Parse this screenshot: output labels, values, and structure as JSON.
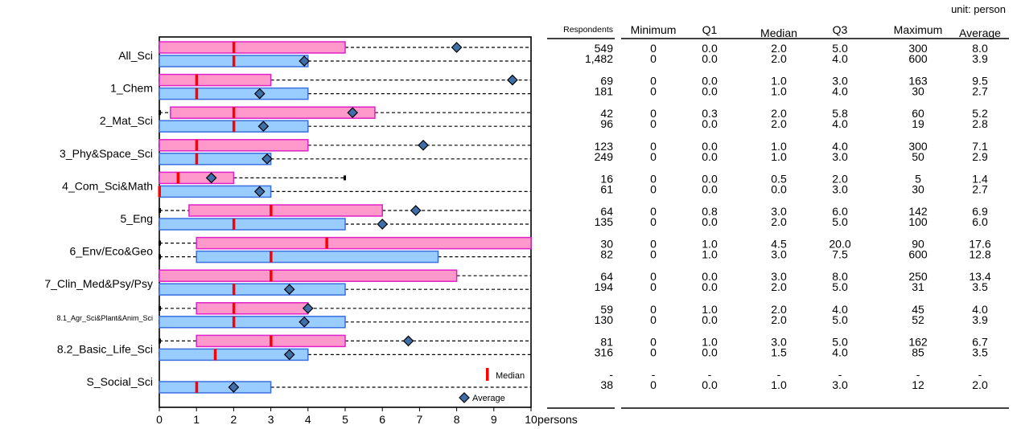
{
  "chart_data": {
    "type": "boxplot",
    "xlabel": "persons",
    "xlim": [
      0,
      10
    ],
    "x_ticks": [
      "0",
      "1",
      "2",
      "3",
      "4",
      "5",
      "6",
      "7",
      "8",
      "9",
      "10"
    ],
    "unit_note": "unit: person",
    "columns": [
      "Respondents",
      "Minimum",
      "Q1",
      "Median",
      "Q3",
      "Maximum",
      "Average"
    ],
    "series_colors": {
      "pink": "#ff99cc",
      "pink_border": "#e020c8",
      "blue": "#99ccff",
      "blue_border": "#3a70e0",
      "median": "#ff0000",
      "avg": "#3f6fa8"
    },
    "legend": {
      "median": "Median",
      "average": "Average"
    },
    "categories": [
      {
        "label": "All_Sci",
        "pink": {
          "resp": "549",
          "min": "0",
          "q1": "0.0",
          "median": "2.0",
          "q3": "5.0",
          "max": "300",
          "avg": "8.0"
        },
        "blue": {
          "resp": "1,482",
          "min": "0",
          "q1": "0.0",
          "median": "2.0",
          "q3": "4.0",
          "max": "600",
          "avg": "3.9"
        }
      },
      {
        "label": "1_Chem",
        "pink": {
          "resp": "69",
          "min": "0",
          "q1": "0.0",
          "median": "1.0",
          "q3": "3.0",
          "max": "163",
          "avg": "9.5"
        },
        "blue": {
          "resp": "181",
          "min": "0",
          "q1": "0.0",
          "median": "1.0",
          "q3": "4.0",
          "max": "30",
          "avg": "2.7"
        }
      },
      {
        "label": "2_Mat_Sci",
        "pink": {
          "resp": "42",
          "min": "0",
          "q1": "0.3",
          "median": "2.0",
          "q3": "5.8",
          "max": "60",
          "avg": "5.2"
        },
        "blue": {
          "resp": "96",
          "min": "0",
          "q1": "0.0",
          "median": "2.0",
          "q3": "4.0",
          "max": "19",
          "avg": "2.8"
        }
      },
      {
        "label": "3_Phy&Space_Sci",
        "pink": {
          "resp": "123",
          "min": "0",
          "q1": "0.0",
          "median": "1.0",
          "q3": "4.0",
          "max": "300",
          "avg": "7.1"
        },
        "blue": {
          "resp": "249",
          "min": "0",
          "q1": "0.0",
          "median": "1.0",
          "q3": "3.0",
          "max": "50",
          "avg": "2.9"
        }
      },
      {
        "label": "4_Com_Sci&Math",
        "pink": {
          "resp": "16",
          "min": "0",
          "q1": "0.0",
          "median": "0.5",
          "q3": "2.0",
          "max": "5",
          "avg": "1.4"
        },
        "blue": {
          "resp": "61",
          "min": "0",
          "q1": "0.0",
          "median": "0.0",
          "q3": "3.0",
          "max": "30",
          "avg": "2.7"
        }
      },
      {
        "label": "5_Eng",
        "pink": {
          "resp": "64",
          "min": "0",
          "q1": "0.8",
          "median": "3.0",
          "q3": "6.0",
          "max": "142",
          "avg": "6.9"
        },
        "blue": {
          "resp": "135",
          "min": "0",
          "q1": "0.0",
          "median": "2.0",
          "q3": "5.0",
          "max": "100",
          "avg": "6.0"
        }
      },
      {
        "label": "6_Env/Eco&Geo",
        "pink": {
          "resp": "30",
          "min": "0",
          "q1": "1.0",
          "median": "4.5",
          "q3": "20.0",
          "max": "90",
          "avg": "17.6"
        },
        "blue": {
          "resp": "82",
          "min": "0",
          "q1": "1.0",
          "median": "3.0",
          "q3": "7.5",
          "max": "600",
          "avg": "12.8"
        }
      },
      {
        "label": "7_Clin_Med&Psy/Psy",
        "pink": {
          "resp": "64",
          "min": "0",
          "q1": "0.0",
          "median": "3.0",
          "q3": "8.0",
          "max": "250",
          "avg": "13.4"
        },
        "blue": {
          "resp": "194",
          "min": "0",
          "q1": "0.0",
          "median": "2.0",
          "q3": "5.0",
          "max": "31",
          "avg": "3.5"
        }
      },
      {
        "label": "8.1_Agr_Sci&Plant&Anim_Sci",
        "small": true,
        "pink": {
          "resp": "59",
          "min": "0",
          "q1": "1.0",
          "median": "2.0",
          "q3": "4.0",
          "max": "45",
          "avg": "4.0"
        },
        "blue": {
          "resp": "130",
          "min": "0",
          "q1": "0.0",
          "median": "2.0",
          "q3": "5.0",
          "max": "52",
          "avg": "3.9"
        }
      },
      {
        "label": "8.2_Basic_Life_Sci",
        "pink": {
          "resp": "81",
          "min": "0",
          "q1": "1.0",
          "median": "3.0",
          "q3": "5.0",
          "max": "162",
          "avg": "6.7"
        },
        "blue": {
          "resp": "316",
          "min": "0",
          "q1": "0.0",
          "median": "1.5",
          "q3": "4.0",
          "max": "85",
          "avg": "3.5"
        }
      },
      {
        "label": "S_Social_Sci",
        "pink": {
          "resp": "-",
          "min": "-",
          "q1": "-",
          "median": "-",
          "q3": "-",
          "max": "-",
          "avg": "-"
        },
        "blue": {
          "resp": "38",
          "min": "0",
          "q1": "0.0",
          "median": "1.0",
          "q3": "3.0",
          "max": "12",
          "avg": "2.0"
        }
      }
    ]
  }
}
